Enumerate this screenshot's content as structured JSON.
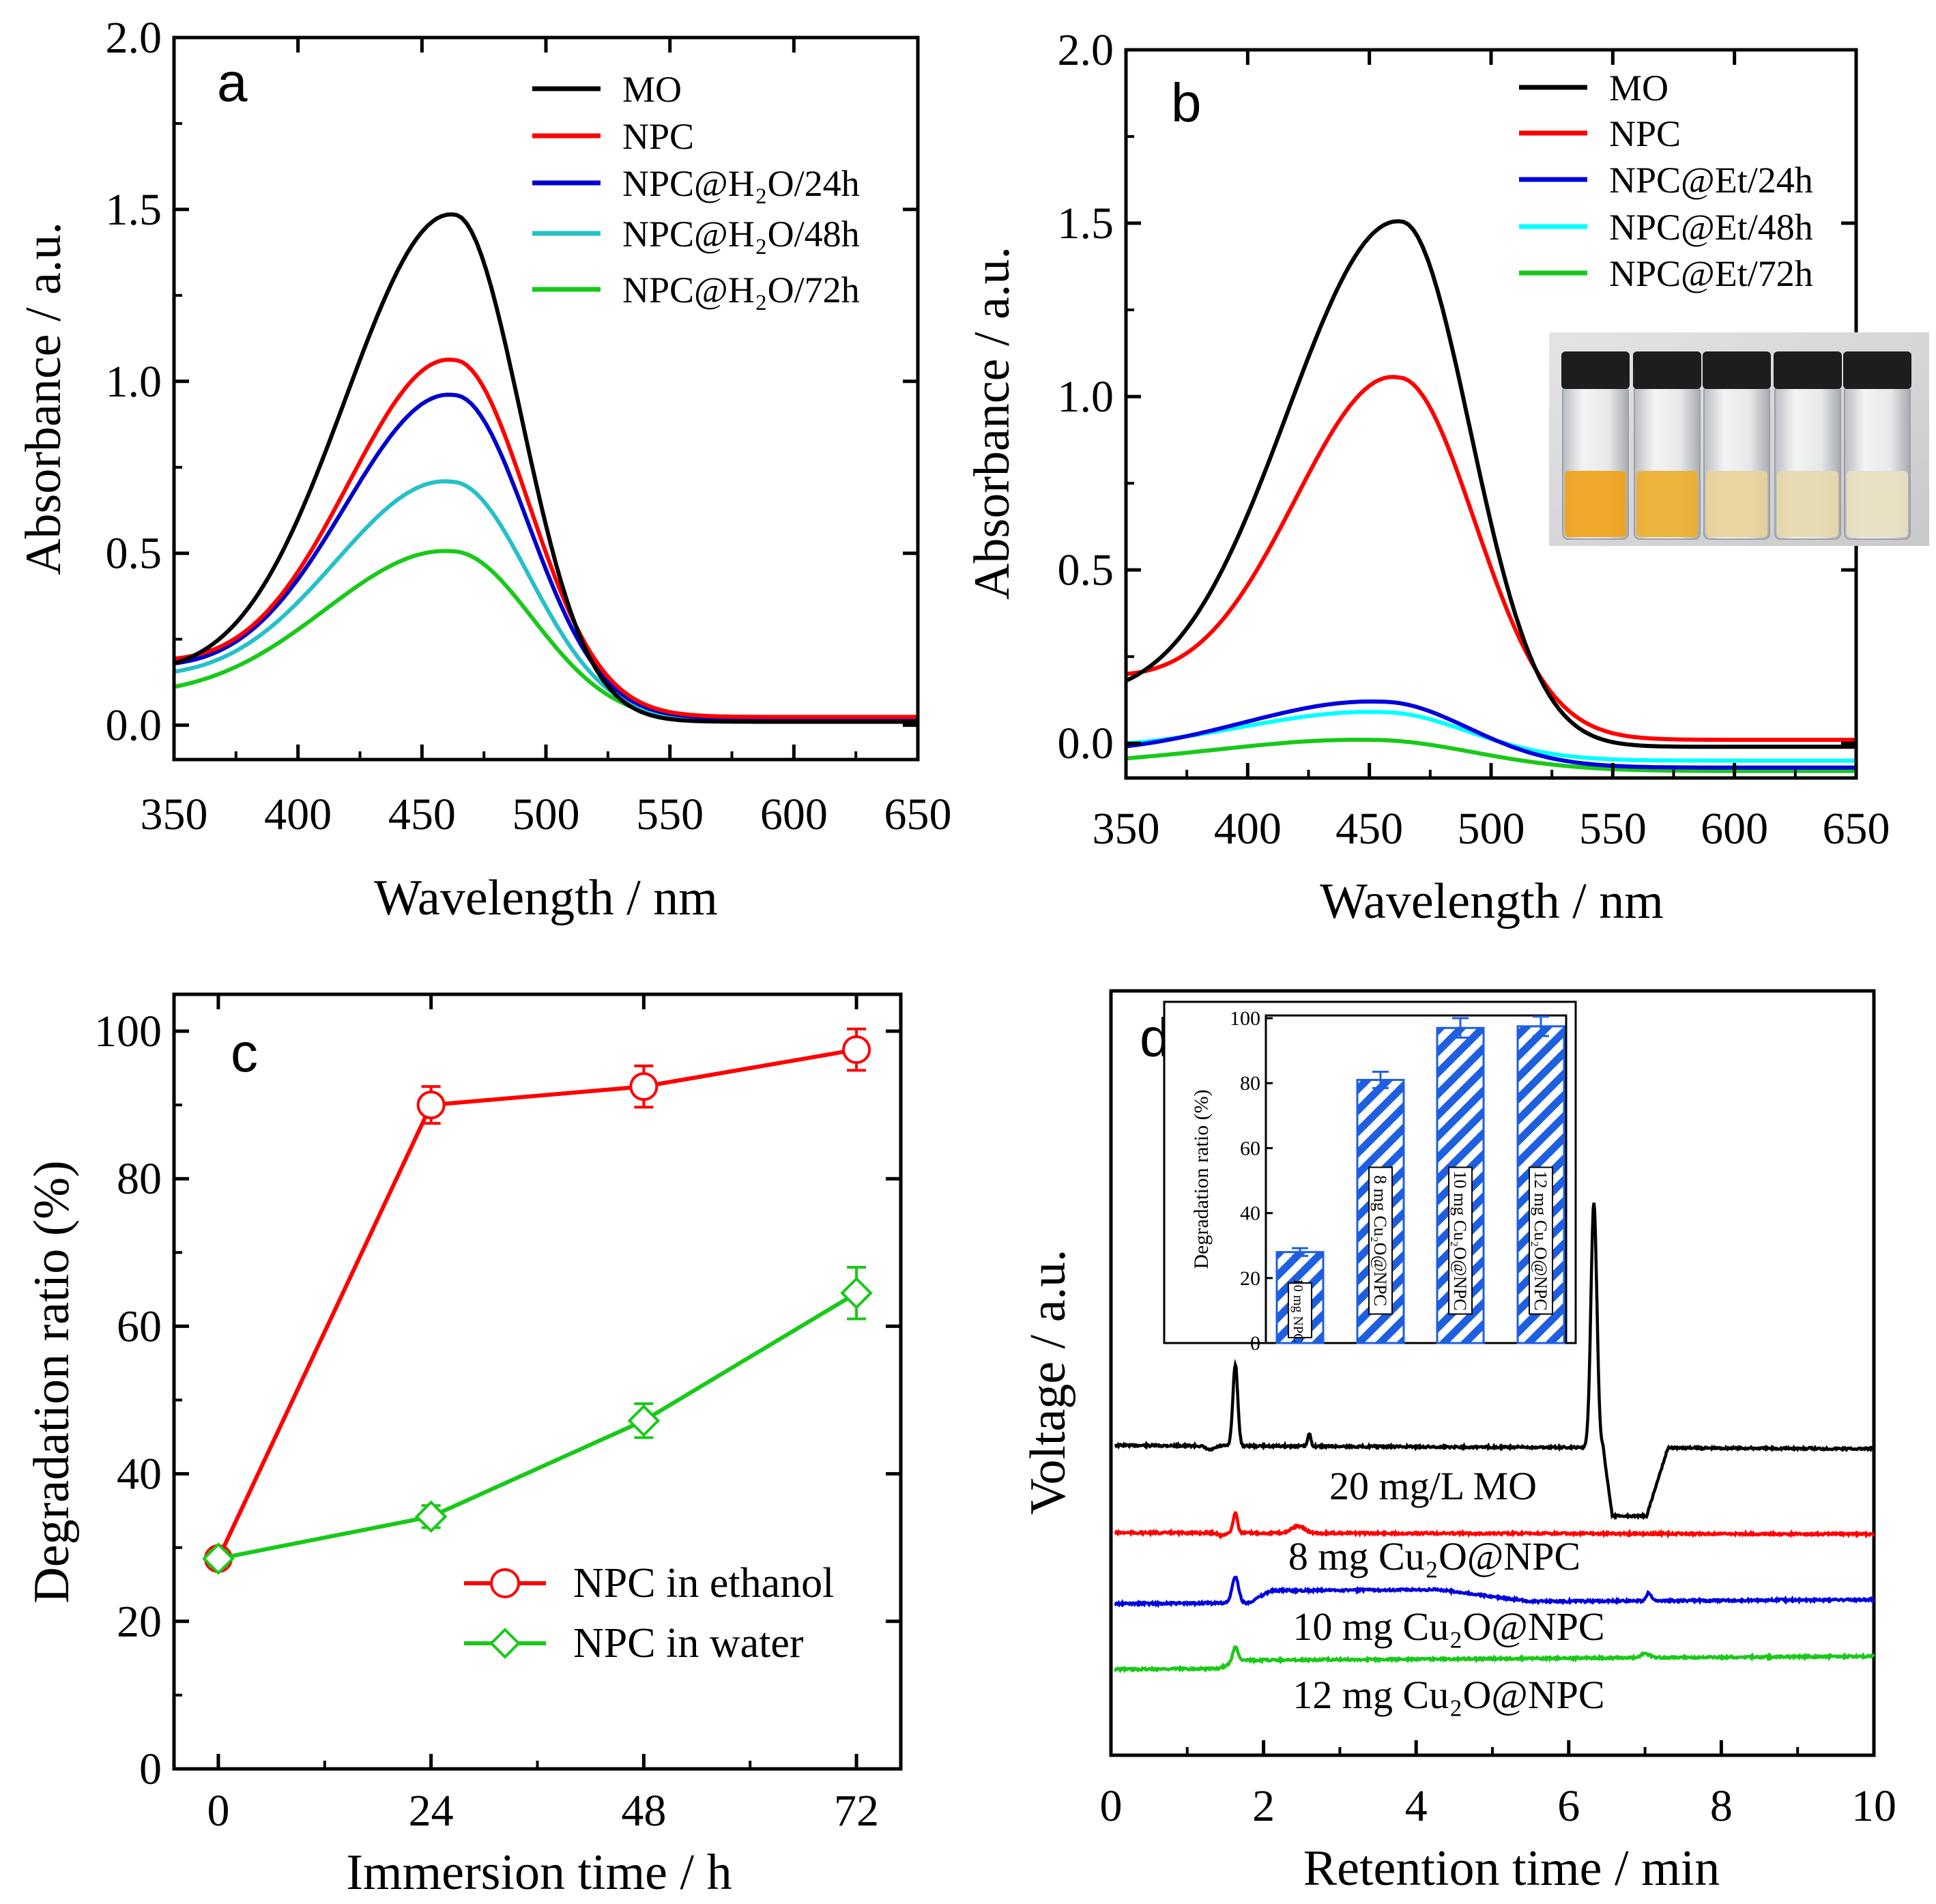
{
  "colors": {
    "MO": "#000000",
    "NPC": "#ff0000",
    "h24_a": "#0000cc",
    "h48_a": "#25c0c8",
    "h72": "#19c919",
    "h24_b": "#0000dd",
    "h48_b": "#00ffff",
    "ethanol": "#ff0000",
    "water": "#19c919",
    "bar": "#1e5fe0"
  },
  "chart_data": [
    {
      "panel": "a",
      "type": "line",
      "xlabel": "Wavelength / nm",
      "ylabel": "Absorbance / a.u.",
      "xlim": [
        350,
        650
      ],
      "ylim": [
        -0.1,
        2.0
      ],
      "xticks": [
        "350",
        "400",
        "450",
        "500",
        "550",
        "600",
        "650"
      ],
      "yticks": [
        "0.0",
        "0.5",
        "1.0",
        "1.5",
        "2.0"
      ],
      "legend_position": "top-right",
      "series": [
        {
          "name": "MO",
          "peak": 1.48,
          "center": 463,
          "width_left": 62,
          "width_right": 38,
          "start": 0.17,
          "tail": 0.005,
          "color_key": "MO"
        },
        {
          "name": "NPC",
          "peak": 1.05,
          "center": 463,
          "width_left": 60,
          "width_right": 42,
          "start": 0.17,
          "tail": 0.012,
          "color_key": "NPC"
        },
        {
          "name": "NPC@H₂O/24h",
          "peak": 0.95,
          "center": 463,
          "width_left": 62,
          "width_right": 42,
          "start": 0.16,
          "tail": 0.01,
          "color_key": "h24_a"
        },
        {
          "name": "NPC@H₂O/48h",
          "peak": 0.7,
          "center": 462,
          "width_left": 66,
          "width_right": 44,
          "start": 0.14,
          "tail": 0.008,
          "color_key": "h48_a"
        },
        {
          "name": "NPC@H₂O/72h",
          "peak": 0.5,
          "center": 462,
          "width_left": 72,
          "width_right": 46,
          "start": 0.1,
          "tail": 0.006,
          "color_key": "h72"
        }
      ]
    },
    {
      "panel": "b",
      "type": "line",
      "xlabel": "Wavelength / nm",
      "ylabel": "Absorbance / a.u.",
      "xlim": [
        350,
        650
      ],
      "ylim": [
        -0.1,
        2.0
      ],
      "xticks": [
        "350",
        "400",
        "450",
        "500",
        "550",
        "600",
        "650"
      ],
      "yticks": [
        "0.0",
        "0.5",
        "1.0",
        "1.5",
        "2.0"
      ],
      "legend_position": "top-right",
      "inset": "photo of five vials with orange to pale-yellow solutions",
      "series": [
        {
          "name": "MO",
          "peak": 1.51,
          "center": 463,
          "width_left": 66,
          "width_right": 40,
          "start": 0.19,
          "tail": -0.005,
          "color_key": "MO"
        },
        {
          "name": "NPC",
          "peak": 1.05,
          "center": 462,
          "width_left": 60,
          "width_right": 44,
          "start": 0.19,
          "tail": 0.005,
          "color_key": "NPC"
        },
        {
          "name": "NPC@Et/24h",
          "peak": 0.155,
          "center": 455,
          "width_left": 80,
          "width_right": 50,
          "start": 0.055,
          "tail": -0.035,
          "color_key": "h24_b"
        },
        {
          "name": "NPC@Et/48h",
          "peak": 0.115,
          "center": 455,
          "width_left": 80,
          "width_right": 50,
          "start": 0.045,
          "tail": -0.025,
          "color_key": "h48_b"
        },
        {
          "name": "NPC@Et/72h",
          "peak": 0.05,
          "center": 450,
          "width_left": 90,
          "width_right": 60,
          "start": 0.025,
          "tail": -0.04,
          "color_key": "h72"
        }
      ]
    },
    {
      "panel": "c",
      "type": "line",
      "xlabel": "Immersion time / h",
      "ylabel": "Degradation ratio (%)",
      "xlim": [
        -5,
        77
      ],
      "ylim": [
        0,
        105
      ],
      "xticks": [
        "0",
        "24",
        "48",
        "72"
      ],
      "yticks": [
        "0",
        "20",
        "40",
        "60",
        "80",
        "100"
      ],
      "legend_position": "bottom-right",
      "series": [
        {
          "name": "NPC in ethanol",
          "marker": "circle",
          "x": [
            0,
            24,
            48,
            72
          ],
          "y": [
            28.5,
            90,
            92.5,
            97.5
          ],
          "err": [
            1,
            2.5,
            2.8,
            2.8
          ],
          "color_key": "ethanol"
        },
        {
          "name": "NPC in water",
          "marker": "diamond",
          "x": [
            0,
            24,
            48,
            72
          ],
          "y": [
            28.5,
            34.2,
            47.2,
            64.5
          ],
          "err": [
            1,
            1.5,
            2.3,
            3.5
          ],
          "color_key": "water"
        }
      ]
    },
    {
      "panel": "d",
      "type": "line",
      "xlabel": "Retention time / min",
      "ylabel": "Voltage / a.u.",
      "xlim": [
        0,
        10
      ],
      "xticks": [
        "0",
        "2",
        "4",
        "6",
        "8",
        "10"
      ],
      "series": [
        {
          "name": "20 mg/L MO",
          "color_key": "MO"
        },
        {
          "name": "8 mg Cu₂O@NPC",
          "color_key": "NPC"
        },
        {
          "name": "10 mg Cu₂O@NPC",
          "color_key": "h24_b"
        },
        {
          "name": "12 mg Cu₂O@NPC",
          "color_key": "h72"
        }
      ],
      "inset": {
        "type": "bar",
        "ylabel": "Degradation ratio (%)",
        "ylim": [
          0,
          100
        ],
        "yticks": [
          "0",
          "20",
          "40",
          "60",
          "80",
          "100"
        ],
        "categories": [
          "10 mg NPC",
          "8 mg Cu₂O@NPC",
          "10 mg Cu₂O@NPC",
          "12 mg Cu₂O@NPC"
        ],
        "values": [
          28,
          81,
          97,
          97.5
        ],
        "errors": [
          1.2,
          2.5,
          3,
          3
        ]
      }
    }
  ]
}
